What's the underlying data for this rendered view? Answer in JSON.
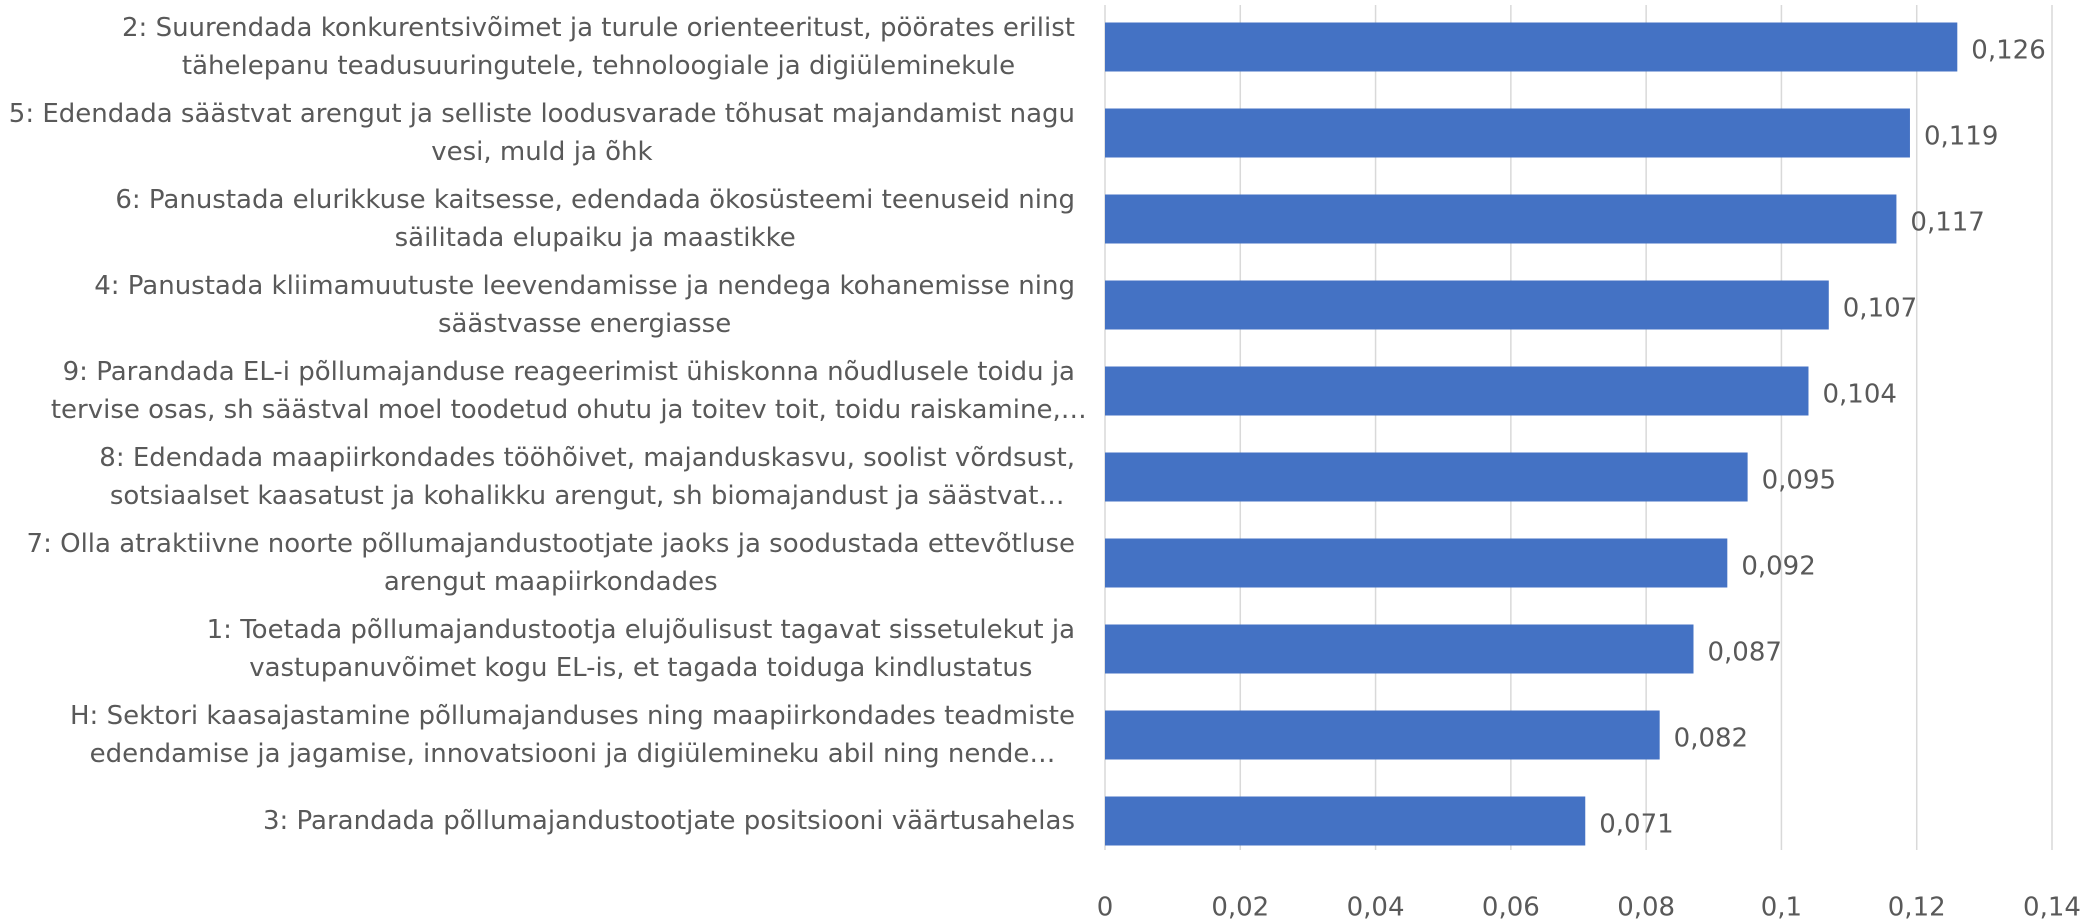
{
  "chart_data": {
    "type": "barh",
    "categories": [
      "2: Suurendada konkurentsivõimet ja turule orienteeritust, pöörates erilist\ntähelepanu teadusuuringutele, tehnoloogiale ja digiüleminekule",
      "5: Edendada säästvat arengut ja selliste loodusvarade tõhusat majandamist nagu\nvesi, muld ja õhk",
      "6: Panustada elurikkuse kaitsesse, edendada ökosüsteemi teenuseid ning\nsäilitada elupaiku ja maastikke",
      "4: Panustada kliimamuutuste leevendamisse ja nendega kohanemisse ning\nsäästvasse energiasse",
      "9: Parandada EL-i põllumajanduse reageerimist ühiskonna nõudlusele toidu ja\ntervise osas, sh säästval moel toodetud ohutu ja toitev toit, toidu raiskamine,…",
      "8: Edendada maapiirkondades tööhõivet, majanduskasvu, soolist võrdsust,\nsotsiaalset kaasatust ja kohalikku arengut, sh biomajandust ja säästvat…",
      "7: Olla atraktiivne noorte põllumajandustootjate jaoks ja soodustada ettevõtluse\narengut maapiirkondades",
      "1: Toetada põllumajandustootja elujõulisust tagavat sissetulekut ja\nvastupanuvõimet kogu EL-is, et tagada toiduga kindlustatus",
      "H: Sektori kaasajastamine põllumajanduses ning maapiirkondades teadmiste\nedendamise ja jagamise, innovatsiooni ja digiülemineku abil ning nende…",
      "3: Parandada põllumajandustootjate positsiooni väärtusahelas"
    ],
    "values": [
      0.126,
      0.119,
      0.117,
      0.107,
      0.104,
      0.095,
      0.092,
      0.087,
      0.082,
      0.071
    ],
    "value_labels": [
      "0,126",
      "0,119",
      "0,117",
      "0,107",
      "0,104",
      "0,095",
      "0,092",
      "0,087",
      "0,082",
      "0,071"
    ],
    "color": "#4472c4",
    "xlim": [
      0,
      0.14
    ],
    "xticks": [
      0,
      {
        "value": 0.02,
        "label": "0,02"
      },
      {
        "value": 0.04,
        "label": "0,04"
      },
      {
        "value": 0.06,
        "label": "0,06"
      },
      {
        "value": 0.08,
        "label": "0,08"
      },
      {
        "value": 0.1,
        "label": "0,1"
      },
      {
        "value": 0.12,
        "label": "0,12"
      },
      {
        "value": 0.14,
        "label": "0,14"
      }
    ],
    "grid": true
  }
}
